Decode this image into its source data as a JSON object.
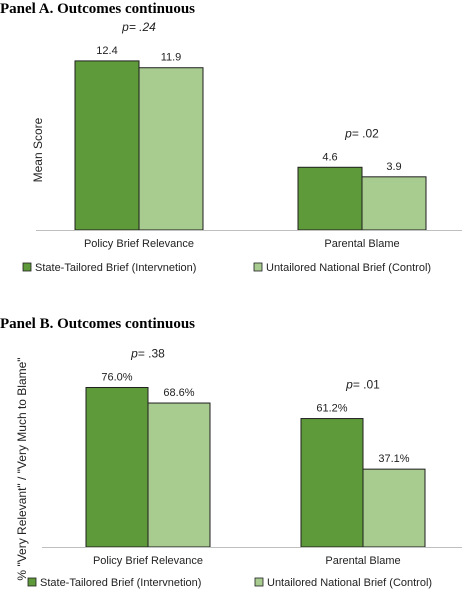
{
  "colors": {
    "intervention": "#5f9a3a",
    "control": "#a8cb8f"
  },
  "chart_data": [
    {
      "type": "bar",
      "title": "Panel A. Outcomes continuous",
      "ylabel": "Mean Score",
      "xlabel": "",
      "categories": [
        "Policy Brief Relevance",
        "Parental Blame"
      ],
      "series": [
        {
          "name": "State-Tailored Brief (Intervnetion)",
          "values": [
            12.4,
            4.6
          ],
          "labels": [
            "12.4",
            "4.6"
          ]
        },
        {
          "name": "Untailored National Brief (Control)",
          "values": [
            11.9,
            3.9
          ],
          "labels": [
            "11.9",
            "3.9"
          ]
        }
      ],
      "annotations": [
        {
          "category": "Policy Brief Relevance",
          "p_prefix": "p",
          "p_rest": "= .24",
          "italic_all": true
        },
        {
          "category": "Parental Blame",
          "p_prefix": "p",
          "p_rest": "= .02",
          "italic_all": false
        }
      ],
      "ylim": [
        0,
        13.2
      ],
      "grid": false,
      "legend": "bottom"
    },
    {
      "type": "bar",
      "title": "Panel B. Outcomes continuous",
      "ylabel": "% \"Very Relevant\" / \"Very Much to Blame\"",
      "xlabel": "",
      "categories": [
        "Policy Brief Relevance",
        "Parental Blame"
      ],
      "series": [
        {
          "name": "State-Tailored Brief (Intervnetion)",
          "values": [
            76.0,
            61.2
          ],
          "labels": [
            "76.0%",
            "61.2%"
          ]
        },
        {
          "name": "Untailored National Brief (Control)",
          "values": [
            68.6,
            37.1
          ],
          "labels": [
            "68.6%",
            "37.1%"
          ]
        }
      ],
      "annotations": [
        {
          "category": "Policy Brief Relevance",
          "p_prefix": "p",
          "p_rest": "= .38",
          "italic_all": false
        },
        {
          "category": "Parental Blame",
          "p_prefix": "p",
          "p_rest": "= .01",
          "italic_all": false
        }
      ],
      "ylim": [
        0,
        81
      ],
      "grid": false,
      "legend": "bottom"
    }
  ]
}
